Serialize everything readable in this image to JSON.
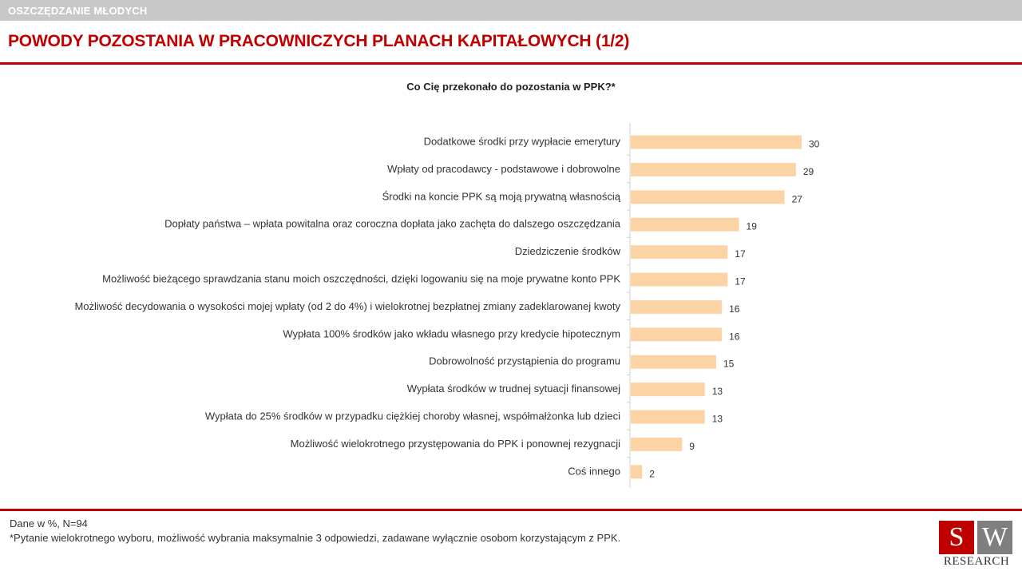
{
  "header": {
    "section": "OSZCZĘDZANIE MŁODYCH",
    "title": "POWODY POZOSTANIA W PRACOWNICZYCH PLANACH KAPITAŁOWYCH (1/2)"
  },
  "colors": {
    "brand_red": "#c00000",
    "bar": "#fbd3a5",
    "topbar": "#c8c8c8"
  },
  "chart_data": {
    "type": "bar",
    "orientation": "horizontal",
    "title": "Co Cię przekonało do pozostania w PPK?*",
    "xlabel": "",
    "ylabel": "",
    "xlim": [
      0,
      30
    ],
    "grid": false,
    "legend": "none",
    "categories": [
      "Dodatkowe środki przy wypłacie emerytury",
      "Wpłaty od pracodawcy - podstawowe i dobrowolne",
      "Środki na koncie PPK są moją prywatną własnością",
      "Dopłaty państwa – wpłata powitalna oraz coroczna dopłata jako zachęta do dalszego oszczędzania",
      "Dziedziczenie środków",
      "Możliwość bieżącego sprawdzania stanu moich oszczędności, dzięki logowaniu się na moje prywatne konto PPK",
      "Możliwość decydowania o wysokości mojej wpłaty (od 2 do 4%) i wielokrotnej bezpłatnej zmiany zadeklarowanej kwoty",
      "Wypłata 100% środków jako wkładu własnego przy kredycie hipotecznym",
      "Dobrowolność przystąpienia do programu",
      "Wypłata środków w trudnej sytuacji finansowej",
      "Wypłata do 25% środków w przypadku ciężkiej choroby własnej, współmałżonka lub dzieci",
      "Możliwość wielokrotnego przystępowania do PPK i ponownej rezygnacji",
      "Coś innego"
    ],
    "values": [
      30,
      29,
      27,
      19,
      17,
      17,
      16,
      16,
      15,
      13,
      13,
      9,
      2
    ]
  },
  "footer": {
    "note1": "Dane w %, N=94",
    "note2": "*Pytanie wielokrotnego wyboru, możliwość wybrania maksymalnie 3 odpowiedzi, zadawane wyłącznie osobom korzystającym z PPK."
  },
  "logo": {
    "letter1": "S",
    "letter2": "W",
    "word": "RESEARCH"
  }
}
